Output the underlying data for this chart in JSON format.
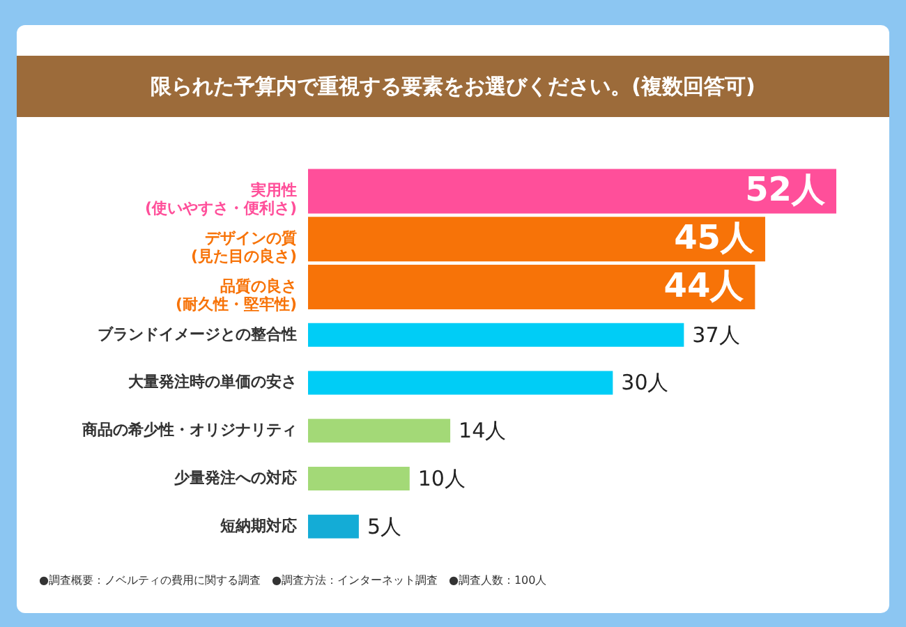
{
  "chart_data": {
    "type": "bar",
    "orientation": "horizontal",
    "title": "限られた予算内で重視する要素をお選びください。(複数回答可)",
    "categories": [
      "実用性\n(使いやすさ・便利さ)",
      "デザインの質\n(見た目の良さ)",
      "品質の良さ\n(耐久性・堅牢性)",
      "ブランドイメージとの整合性",
      "大量発注時の単価の安さ",
      "商品の希少性・オリジナリティ",
      "少量発注への対応",
      "短納期対応"
    ],
    "values": [
      52,
      45,
      44,
      37,
      30,
      14,
      10,
      5
    ],
    "value_labels": [
      "52人",
      "45人",
      "44人",
      "37人",
      "30人",
      "14人",
      "10人",
      "5人"
    ],
    "colors": [
      "#ff4f9a",
      "#f77308",
      "#f77308",
      "#00cdf6",
      "#00cdf6",
      "#a3d977",
      "#a3d977",
      "#14acd6"
    ],
    "annotations": [
      "●調査概要：ノベルティの費用に関する調査　●調査方法：インターネット調査　●調査人数：100人"
    ]
  }
}
